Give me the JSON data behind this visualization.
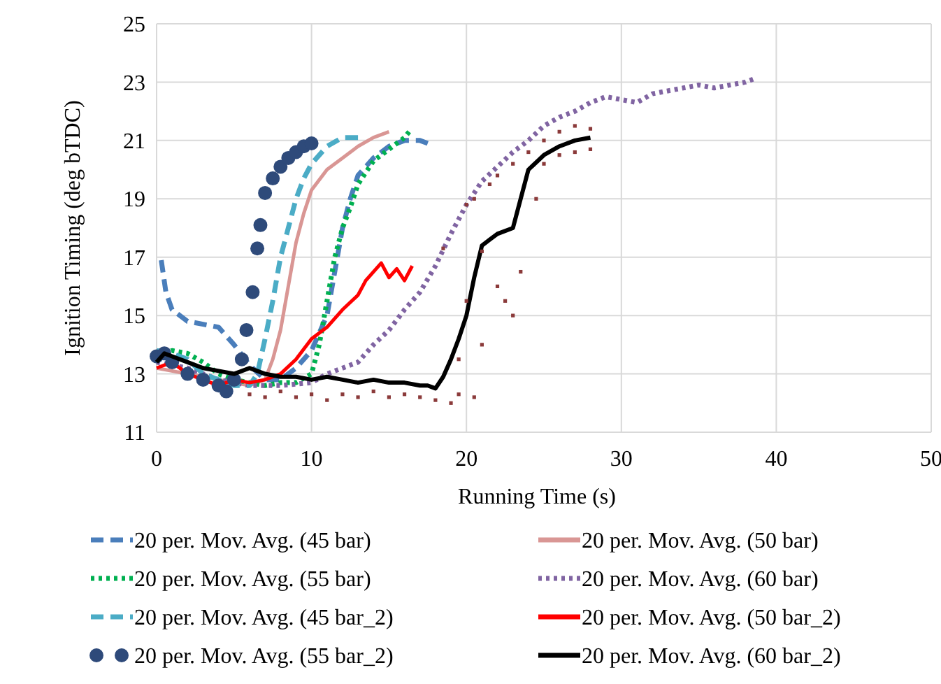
{
  "chart_data": {
    "type": "line",
    "xlabel": "Running Time (s)",
    "ylabel": "Ignition Timing (deg bTDC)",
    "xlim": [
      0,
      50
    ],
    "xticks": [
      0,
      10,
      20,
      30,
      40,
      50
    ],
    "ylim": [
      11,
      25
    ],
    "yticks": [
      11,
      13,
      15,
      17,
      19,
      21,
      23,
      25
    ],
    "grid": true,
    "legend": "bottom",
    "series": [
      {
        "name": "20 per. Mov. Avg. (45 bar)",
        "color": "#4a7ebb",
        "line_style": "dashed",
        "x": [
          0.3,
          0.6,
          1,
          2,
          3,
          4,
          5,
          6,
          7,
          8,
          9,
          10,
          11,
          11.5,
          12,
          12.5,
          13,
          14,
          15,
          16,
          17,
          17.5
        ],
        "values": [
          16.9,
          15.8,
          15.2,
          14.8,
          14.7,
          14.6,
          14,
          13.3,
          12.8,
          12.8,
          13.2,
          13.8,
          15,
          16.5,
          18,
          19,
          19.8,
          20.4,
          20.8,
          21,
          21,
          20.9
        ]
      },
      {
        "name": "20 per. Mov. Avg. (50 bar)",
        "color": "#d99694",
        "x": [
          0,
          2,
          4,
          6,
          7,
          7.5,
          8,
          8.5,
          9,
          9.5,
          10,
          11,
          12,
          13,
          14,
          15
        ],
        "values": [
          13.2,
          13,
          12.8,
          12.6,
          12.8,
          13.5,
          14.5,
          16,
          17.5,
          18.5,
          19.3,
          20,
          20.4,
          20.8,
          21.1,
          21.3
        ]
      },
      {
        "name": "20 per. Mov. Avg. (55 bar)",
        "color": "#00b050",
        "line_style": "dotted",
        "x": [
          0,
          1,
          2,
          3,
          4,
          5,
          6,
          7,
          8,
          9,
          10,
          10.5,
          11,
          11.5,
          12,
          12.5,
          13,
          14,
          15,
          16,
          16.3
        ],
        "values": [
          13.6,
          13.8,
          13.7,
          13.4,
          13,
          12.8,
          12.7,
          12.6,
          12.7,
          12.7,
          13,
          14,
          15.5,
          17,
          18,
          18.7,
          19.5,
          20.3,
          20.7,
          21.1,
          21.3
        ]
      },
      {
        "name": "20 per. Mov. Avg. (60 bar)",
        "color": "#8064a2",
        "line_style": "dotted",
        "x": [
          0,
          2,
          4,
          6,
          8,
          10,
          11,
          12,
          13,
          14,
          15,
          16,
          17,
          18,
          19,
          20,
          21,
          22,
          23,
          24,
          25,
          26,
          27,
          28,
          29,
          30,
          31,
          32,
          33,
          34,
          35,
          36,
          37,
          38,
          38.5
        ],
        "values": [
          13.4,
          13.2,
          12.8,
          12.6,
          12.6,
          12.7,
          13,
          13.2,
          13.4,
          14,
          14.5,
          15.2,
          15.8,
          16.7,
          17.8,
          18.8,
          19.6,
          20.1,
          20.6,
          21,
          21.5,
          21.8,
          22,
          22.3,
          22.5,
          22.4,
          22.3,
          22.6,
          22.7,
          22.8,
          22.9,
          22.8,
          22.9,
          23,
          23.1
        ]
      },
      {
        "name": "20 per. Mov. Avg. (45 bar_2)",
        "color": "#4bacc6",
        "line_style": "dashed",
        "x": [
          0,
          1,
          2,
          3,
          4,
          5,
          6,
          6.5,
          7,
          7.5,
          8,
          8.5,
          9,
          9.5,
          10,
          11,
          12,
          13
        ],
        "values": [
          13.8,
          13.7,
          13.5,
          13,
          12.8,
          12.6,
          12.6,
          13,
          14.2,
          15.5,
          17,
          18,
          19,
          19.7,
          20.2,
          20.8,
          21.1,
          21.1
        ]
      },
      {
        "name": "20 per. Mov. Avg. (50 bar_2)",
        "color": "#ff0000",
        "x": [
          0,
          1,
          2,
          3,
          4,
          5,
          6,
          7,
          8,
          9,
          10,
          11,
          12,
          13,
          13.5,
          14,
          14.5,
          15,
          15.5,
          16,
          16.5
        ],
        "values": [
          13.2,
          13.4,
          13,
          12.8,
          12.6,
          12.8,
          12.7,
          12.8,
          13,
          13.5,
          14.2,
          14.6,
          15.2,
          15.7,
          16.2,
          16.5,
          16.8,
          16.3,
          16.6,
          16.2,
          16.7
        ]
      },
      {
        "name": "20 per. Mov. Avg. (55 bar_2)",
        "color": "#2e4a7a",
        "type": "scatter",
        "marker": "circle",
        "x": [
          0,
          0.5,
          1,
          2,
          3,
          4,
          4.5,
          5,
          5.5,
          5.8,
          6.2,
          6.5,
          6.7,
          7,
          7.5,
          8,
          8.5,
          9,
          9.5,
          10
        ],
        "values": [
          13.6,
          13.7,
          13.4,
          13,
          12.8,
          12.6,
          12.4,
          12.8,
          13.5,
          14.5,
          15.8,
          17.3,
          18.1,
          19.2,
          19.7,
          20.1,
          20.4,
          20.6,
          20.8,
          20.9
        ]
      },
      {
        "name": "20 per. Mov. Avg. (60 bar_2)",
        "color": "#000000",
        "x": [
          0,
          0.5,
          1,
          2,
          3,
          4,
          5,
          6,
          7,
          8,
          9,
          10,
          11,
          12,
          13,
          14,
          15,
          16,
          17,
          17.5,
          18,
          18.5,
          19,
          19.5,
          20,
          20.5,
          21,
          21.5,
          22,
          23,
          23.5,
          24,
          25,
          26,
          27,
          28
        ],
        "values": [
          13.4,
          13.7,
          13.6,
          13.4,
          13.2,
          13.1,
          13,
          13.2,
          13,
          12.9,
          12.9,
          12.8,
          12.9,
          12.8,
          12.7,
          12.8,
          12.7,
          12.7,
          12.6,
          12.6,
          12.5,
          12.9,
          13.5,
          14.2,
          15,
          16.3,
          17.4,
          17.6,
          17.8,
          18,
          19,
          20,
          20.5,
          20.8,
          21,
          21.1
        ]
      },
      {
        "color": "#8b3a3a",
        "type": "scatter",
        "marker": "square",
        "x": [
          6,
          7,
          8,
          9,
          10,
          11,
          12,
          13,
          14,
          15,
          16,
          17,
          18,
          19,
          19.5,
          20,
          20,
          20.5,
          21,
          21,
          21.5,
          22,
          22,
          22.5,
          23,
          23,
          23.5,
          24,
          24.5,
          25,
          25,
          26,
          26,
          27,
          27,
          28,
          28,
          19.5,
          20.5,
          18.5
        ],
        "values": [
          12.3,
          12.2,
          12.4,
          12.2,
          12.3,
          12.1,
          12.3,
          12.2,
          12.4,
          12.2,
          12.3,
          12.2,
          12.1,
          12,
          13.5,
          15.5,
          18.8,
          19,
          14,
          17.2,
          19.5,
          16,
          19.8,
          15.5,
          15,
          20.2,
          16.5,
          20.6,
          19,
          21,
          20.2,
          21.3,
          20.5,
          21.5,
          20.6,
          21.4,
          20.7,
          12.3,
          12.2,
          17.3
        ]
      }
    ]
  }
}
